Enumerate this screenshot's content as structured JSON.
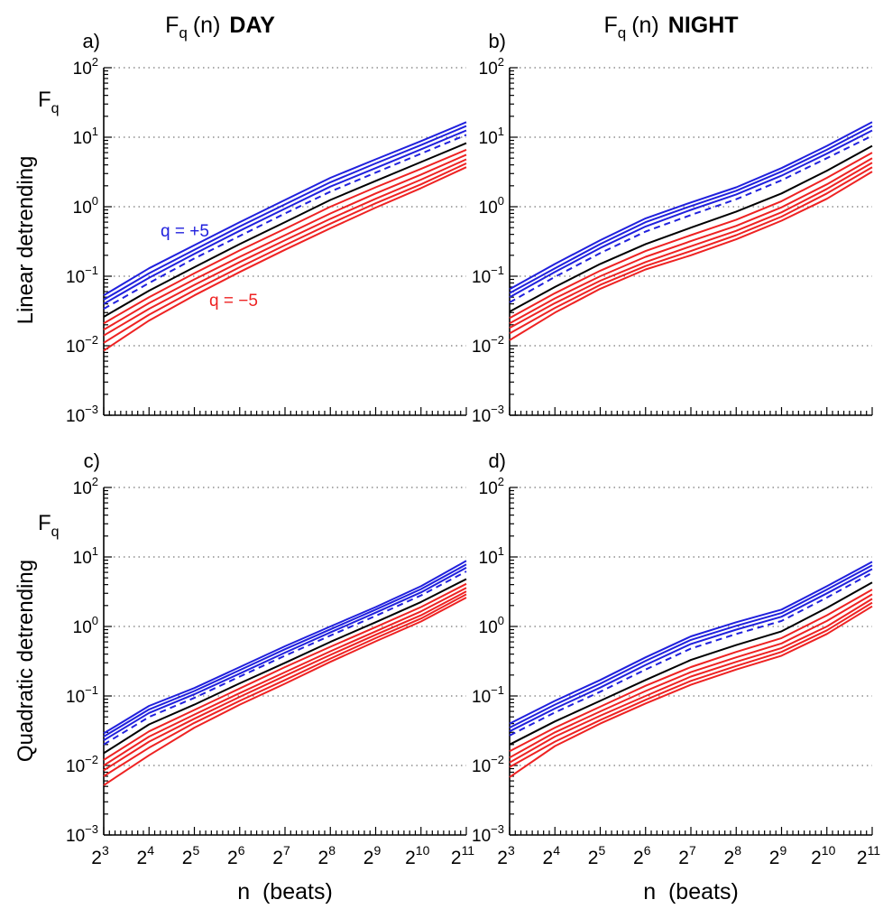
{
  "figure": {
    "col_titles": [
      {
        "fq": "F",
        "sub": "q",
        "n": "(n)",
        "word": "DAY"
      },
      {
        "fq": "F",
        "sub": "q",
        "n": "(n)",
        "word": "NIGHT"
      }
    ],
    "row_labels": [
      "Linear detrending",
      "Quadratic detrending"
    ],
    "x_label": "n  (beats)",
    "y_label": {
      "base": "F",
      "sub": "q"
    }
  },
  "chart_data": [
    {
      "panel_label": "a)",
      "type": "line",
      "x_scale": "log2",
      "y_scale": "log10",
      "xlim": [
        8,
        2048
      ],
      "ylim": [
        0.001,
        100
      ],
      "x_tick_exponents": [
        "3",
        "4",
        "5",
        "6",
        "7",
        "8",
        "9",
        "10",
        "11"
      ],
      "y_tick_exponents": [
        "-3",
        "-2",
        "-1",
        "0",
        "1",
        "2"
      ],
      "grid": "horizontal dotted",
      "annotations": [
        {
          "text": "q = +5",
          "color": "#2020dd"
        },
        {
          "text": "q = −5",
          "color": "#ee2222"
        }
      ],
      "x": [
        8,
        16,
        32,
        64,
        128,
        256,
        512,
        1024,
        2048
      ],
      "series": [
        {
          "q": 5,
          "color": "#2020dd",
          "dash": false,
          "values": [
            0.053,
            0.13,
            0.28,
            0.6,
            1.25,
            2.6,
            4.8,
            8.8,
            16.5
          ]
        },
        {
          "q": 4,
          "color": "#2020dd",
          "dash": false,
          "values": [
            0.046,
            0.11,
            0.24,
            0.52,
            1.08,
            2.25,
            4.2,
            7.7,
            14.5
          ]
        },
        {
          "q": 3,
          "color": "#2020dd",
          "dash": false,
          "values": [
            0.04,
            0.095,
            0.21,
            0.45,
            0.94,
            1.95,
            3.6,
            6.7,
            12.5
          ]
        },
        {
          "q": 2,
          "color": "#2020dd",
          "dash": true,
          "values": [
            0.034,
            0.08,
            0.18,
            0.38,
            0.8,
            1.65,
            3.1,
            5.8,
            10.8
          ]
        },
        {
          "q": 0,
          "color": "#000000",
          "dash": false,
          "values": [
            0.026,
            0.062,
            0.135,
            0.29,
            0.6,
            1.25,
            2.35,
            4.4,
            8.2
          ]
        },
        {
          "q": -1,
          "color": "#ee2222",
          "dash": false,
          "values": [
            0.021,
            0.05,
            0.11,
            0.235,
            0.48,
            1.0,
            1.9,
            3.5,
            6.6
          ]
        },
        {
          "q": -2,
          "color": "#ee2222",
          "dash": false,
          "values": [
            0.017,
            0.041,
            0.09,
            0.19,
            0.39,
            0.8,
            1.55,
            2.9,
            5.6
          ]
        },
        {
          "q": -3,
          "color": "#ee2222",
          "dash": false,
          "values": [
            0.014,
            0.034,
            0.075,
            0.16,
            0.33,
            0.67,
            1.3,
            2.45,
            4.8
          ]
        },
        {
          "q": -4,
          "color": "#ee2222",
          "dash": false,
          "values": [
            0.011,
            0.028,
            0.063,
            0.135,
            0.28,
            0.57,
            1.12,
            2.1,
            4.2
          ]
        },
        {
          "q": -5,
          "color": "#ee2222",
          "dash": false,
          "values": [
            0.0085,
            0.023,
            0.053,
            0.115,
            0.24,
            0.49,
            0.97,
            1.85,
            3.7
          ]
        }
      ]
    },
    {
      "panel_label": "b)",
      "type": "line",
      "x_scale": "log2",
      "y_scale": "log10",
      "xlim": [
        8,
        2048
      ],
      "ylim": [
        0.001,
        100
      ],
      "x_tick_exponents": [
        "3",
        "4",
        "5",
        "6",
        "7",
        "8",
        "9",
        "10",
        "11"
      ],
      "y_tick_exponents": [
        "-3",
        "-2",
        "-1",
        "0",
        "1",
        "2"
      ],
      "grid": "horizontal dotted",
      "x": [
        8,
        16,
        32,
        64,
        128,
        256,
        512,
        1024,
        2048
      ],
      "series": [
        {
          "q": 5,
          "color": "#2020dd",
          "dash": false,
          "values": [
            0.065,
            0.15,
            0.33,
            0.68,
            1.15,
            1.9,
            3.6,
            7.5,
            16.5
          ]
        },
        {
          "q": 4,
          "color": "#2020dd",
          "dash": false,
          "values": [
            0.057,
            0.13,
            0.29,
            0.6,
            1.02,
            1.7,
            3.2,
            6.6,
            14.5
          ]
        },
        {
          "q": 3,
          "color": "#2020dd",
          "dash": false,
          "values": [
            0.05,
            0.115,
            0.255,
            0.52,
            0.9,
            1.5,
            2.8,
            5.8,
            12.5
          ]
        },
        {
          "q": 2,
          "color": "#2020dd",
          "dash": true,
          "values": [
            0.042,
            0.098,
            0.215,
            0.44,
            0.76,
            1.28,
            2.4,
            5.0,
            10.5
          ]
        },
        {
          "q": 0,
          "color": "#000000",
          "dash": false,
          "values": [
            0.031,
            0.07,
            0.15,
            0.29,
            0.5,
            0.85,
            1.55,
            3.3,
            7.5
          ]
        },
        {
          "q": -1,
          "color": "#ee2222",
          "dash": false,
          "values": [
            0.025,
            0.057,
            0.12,
            0.23,
            0.39,
            0.65,
            1.2,
            2.6,
            6.0
          ]
        },
        {
          "q": -2,
          "color": "#ee2222",
          "dash": false,
          "values": [
            0.021,
            0.048,
            0.1,
            0.19,
            0.32,
            0.53,
            0.98,
            2.1,
            5.0
          ]
        },
        {
          "q": -3,
          "color": "#ee2222",
          "dash": false,
          "values": [
            0.018,
            0.041,
            0.086,
            0.16,
            0.27,
            0.45,
            0.83,
            1.8,
            4.3
          ]
        },
        {
          "q": -4,
          "color": "#ee2222",
          "dash": false,
          "values": [
            0.015,
            0.035,
            0.075,
            0.14,
            0.23,
            0.39,
            0.72,
            1.55,
            3.7
          ]
        },
        {
          "q": -5,
          "color": "#ee2222",
          "dash": false,
          "values": [
            0.012,
            0.03,
            0.066,
            0.125,
            0.2,
            0.34,
            0.63,
            1.3,
            3.2
          ]
        }
      ]
    },
    {
      "panel_label": "c)",
      "type": "line",
      "x_scale": "log2",
      "y_scale": "log10",
      "xlim": [
        8,
        2048
      ],
      "ylim": [
        0.001,
        100
      ],
      "x_tick_exponents": [
        "3",
        "4",
        "5",
        "6",
        "7",
        "8",
        "9",
        "10",
        "11"
      ],
      "y_tick_exponents": [
        "-3",
        "-2",
        "-1",
        "0",
        "1",
        "2"
      ],
      "grid": "horizontal dotted",
      "x": [
        8,
        16,
        32,
        64,
        128,
        256,
        512,
        1024,
        2048
      ],
      "series": [
        {
          "q": 5,
          "color": "#2020dd",
          "dash": false,
          "values": [
            0.029,
            0.072,
            0.13,
            0.26,
            0.52,
            1.0,
            1.9,
            3.8,
            8.8
          ]
        },
        {
          "q": 4,
          "color": "#2020dd",
          "dash": false,
          "values": [
            0.026,
            0.064,
            0.118,
            0.235,
            0.47,
            0.91,
            1.75,
            3.45,
            7.8
          ]
        },
        {
          "q": 3,
          "color": "#2020dd",
          "dash": false,
          "values": [
            0.023,
            0.057,
            0.106,
            0.21,
            0.42,
            0.82,
            1.58,
            3.1,
            7.0
          ]
        },
        {
          "q": 2,
          "color": "#2020dd",
          "dash": true,
          "values": [
            0.02,
            0.05,
            0.094,
            0.19,
            0.38,
            0.74,
            1.42,
            2.8,
            6.2
          ]
        },
        {
          "q": 0,
          "color": "#000000",
          "dash": false,
          "values": [
            0.015,
            0.039,
            0.075,
            0.152,
            0.3,
            0.6,
            1.15,
            2.25,
            4.8
          ]
        },
        {
          "q": -1,
          "color": "#ee2222",
          "dash": false,
          "values": [
            0.012,
            0.031,
            0.063,
            0.128,
            0.26,
            0.51,
            0.98,
            1.9,
            4.1
          ]
        },
        {
          "q": -2,
          "color": "#ee2222",
          "dash": false,
          "values": [
            0.01,
            0.026,
            0.054,
            0.11,
            0.22,
            0.44,
            0.85,
            1.65,
            3.6
          ]
        },
        {
          "q": -3,
          "color": "#ee2222",
          "dash": false,
          "values": [
            0.0085,
            0.022,
            0.047,
            0.097,
            0.195,
            0.39,
            0.76,
            1.45,
            3.2
          ]
        },
        {
          "q": -4,
          "color": "#ee2222",
          "dash": false,
          "values": [
            0.007,
            0.018,
            0.041,
            0.085,
            0.17,
            0.345,
            0.68,
            1.3,
            2.9
          ]
        },
        {
          "q": -5,
          "color": "#ee2222",
          "dash": false,
          "values": [
            0.0052,
            0.014,
            0.035,
            0.075,
            0.15,
            0.31,
            0.61,
            1.18,
            2.6
          ]
        }
      ]
    },
    {
      "panel_label": "d)",
      "type": "line",
      "x_scale": "log2",
      "y_scale": "log10",
      "xlim": [
        8,
        2048
      ],
      "ylim": [
        0.001,
        100
      ],
      "x_tick_exponents": [
        "3",
        "4",
        "5",
        "6",
        "7",
        "8",
        "9",
        "10",
        "11"
      ],
      "y_tick_exponents": [
        "-3",
        "-2",
        "-1",
        "0",
        "1",
        "2"
      ],
      "grid": "horizontal dotted",
      "x": [
        8,
        16,
        32,
        64,
        128,
        256,
        512,
        1024,
        2048
      ],
      "series": [
        {
          "q": 5,
          "color": "#2020dd",
          "dash": false,
          "values": [
            0.04,
            0.085,
            0.17,
            0.36,
            0.72,
            1.15,
            1.75,
            3.8,
            8.5
          ]
        },
        {
          "q": 4,
          "color": "#2020dd",
          "dash": false,
          "values": [
            0.035,
            0.075,
            0.15,
            0.32,
            0.64,
            1.02,
            1.56,
            3.4,
            7.6
          ]
        },
        {
          "q": 3,
          "color": "#2020dd",
          "dash": false,
          "values": [
            0.031,
            0.066,
            0.132,
            0.28,
            0.56,
            0.9,
            1.38,
            3.0,
            6.7
          ]
        },
        {
          "q": 2,
          "color": "#2020dd",
          "dash": true,
          "values": [
            0.027,
            0.058,
            0.115,
            0.24,
            0.48,
            0.78,
            1.2,
            2.6,
            5.9
          ]
        },
        {
          "q": 0,
          "color": "#000000",
          "dash": false,
          "values": [
            0.02,
            0.043,
            0.085,
            0.17,
            0.33,
            0.54,
            0.85,
            1.85,
            4.3
          ]
        },
        {
          "q": -1,
          "color": "#ee2222",
          "dash": false,
          "values": [
            0.016,
            0.035,
            0.07,
            0.14,
            0.26,
            0.43,
            0.68,
            1.45,
            3.4
          ]
        },
        {
          "q": -2,
          "color": "#ee2222",
          "dash": false,
          "values": [
            0.013,
            0.03,
            0.06,
            0.118,
            0.22,
            0.36,
            0.57,
            1.2,
            2.9
          ]
        },
        {
          "q": -3,
          "color": "#ee2222",
          "dash": false,
          "values": [
            0.011,
            0.026,
            0.052,
            0.1,
            0.19,
            0.31,
            0.49,
            1.0,
            2.5
          ]
        },
        {
          "q": -4,
          "color": "#ee2222",
          "dash": false,
          "values": [
            0.0095,
            0.022,
            0.045,
            0.088,
            0.165,
            0.27,
            0.43,
            0.88,
            2.2
          ]
        },
        {
          "q": -5,
          "color": "#ee2222",
          "dash": false,
          "values": [
            0.0068,
            0.019,
            0.04,
            0.078,
            0.145,
            0.24,
            0.38,
            0.78,
            1.95
          ]
        }
      ]
    }
  ]
}
